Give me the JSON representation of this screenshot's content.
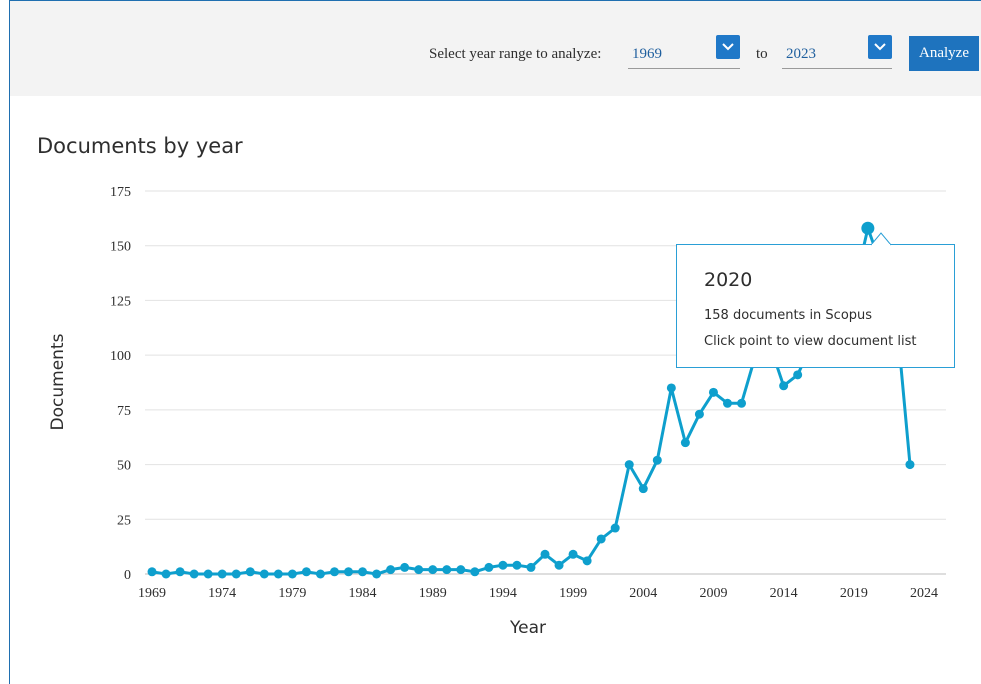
{
  "controls": {
    "range_label": "Select year range to analyze:",
    "from_year": "1969",
    "to_label": "to",
    "to_year": "2023",
    "analyze_label": "Analyze"
  },
  "colors": {
    "accent": "#1e73be",
    "series": "#0e9fcd",
    "grid": "#e2e2e2",
    "tooltip_border": "#2a9fd6"
  },
  "tooltip": {
    "year": "2020",
    "line1": "158 documents in Scopus",
    "line2": "Click point to view document list"
  },
  "chart_data": {
    "type": "line",
    "title": "Documents by year",
    "xlabel": "Year",
    "ylabel": "Documents",
    "xlim": [
      1969,
      2024
    ],
    "ylim": [
      0,
      175
    ],
    "xticks": [
      1969,
      1974,
      1979,
      1984,
      1989,
      1994,
      1999,
      2004,
      2009,
      2014,
      2019,
      2024
    ],
    "yticks": [
      0,
      25,
      50,
      75,
      100,
      125,
      150,
      175
    ],
    "grid": true,
    "highlighted_point": {
      "x": 2020,
      "y": 158
    },
    "series": [
      {
        "x": [
          1969,
          1970,
          1971,
          1972,
          1973,
          1974,
          1975,
          1976,
          1977,
          1978,
          1979,
          1980,
          1981,
          1982,
          1983,
          1984,
          1985,
          1986,
          1987,
          1988,
          1989,
          1990,
          1991,
          1992,
          1993,
          1994,
          1995,
          1996,
          1997,
          1998,
          1999,
          2000,
          2001,
          2002,
          2003,
          2004,
          2005,
          2006,
          2007,
          2008,
          2009,
          2010,
          2011,
          2012,
          2013,
          2014,
          2015,
          2016,
          2017,
          2018,
          2019,
          2020,
          2021,
          2022,
          2023
        ],
        "y": [
          1,
          0,
          1,
          0,
          0,
          0,
          0,
          1,
          0,
          0,
          0,
          1,
          0,
          1,
          1,
          1,
          0,
          2,
          3,
          2,
          2,
          2,
          2,
          1,
          3,
          4,
          4,
          3,
          9,
          4,
          9,
          6,
          16,
          21,
          50,
          39,
          52,
          85,
          60,
          73,
          83,
          78,
          78,
          100,
          105,
          86,
          91,
          105,
          110,
          115,
          130,
          158,
          140,
          120,
          50
        ]
      }
    ]
  }
}
